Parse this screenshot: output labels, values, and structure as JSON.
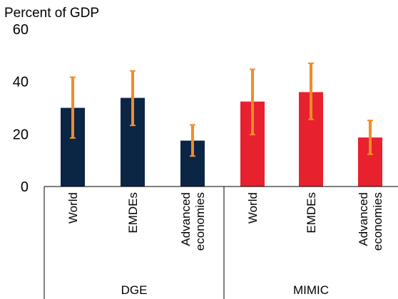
{
  "chart_data": {
    "type": "bar",
    "ylabel": "Percent of GDP",
    "ylim": [
      0,
      60
    ],
    "yticks": [
      0,
      20,
      40,
      60
    ],
    "grid": false,
    "legend": "none",
    "groups": [
      {
        "name": "DGE",
        "color": "#0b2545",
        "categories": [
          "World",
          "EMDEs",
          "Advanced economies"
        ],
        "values": [
          30,
          33.8,
          17.5
        ],
        "error_low": [
          18.5,
          23.3,
          11.6
        ],
        "error_high": [
          41.7,
          44.1,
          23.5
        ]
      },
      {
        "name": "MIMIC",
        "color": "#e8212f",
        "categories": [
          "World",
          "EMDEs",
          "Advanced economies"
        ],
        "values": [
          32.4,
          36,
          18.7
        ],
        "error_low": [
          19.8,
          25.6,
          12.3
        ],
        "error_high": [
          44.7,
          47,
          25.2
        ]
      }
    ],
    "error_bar_color": "#f28c28"
  }
}
